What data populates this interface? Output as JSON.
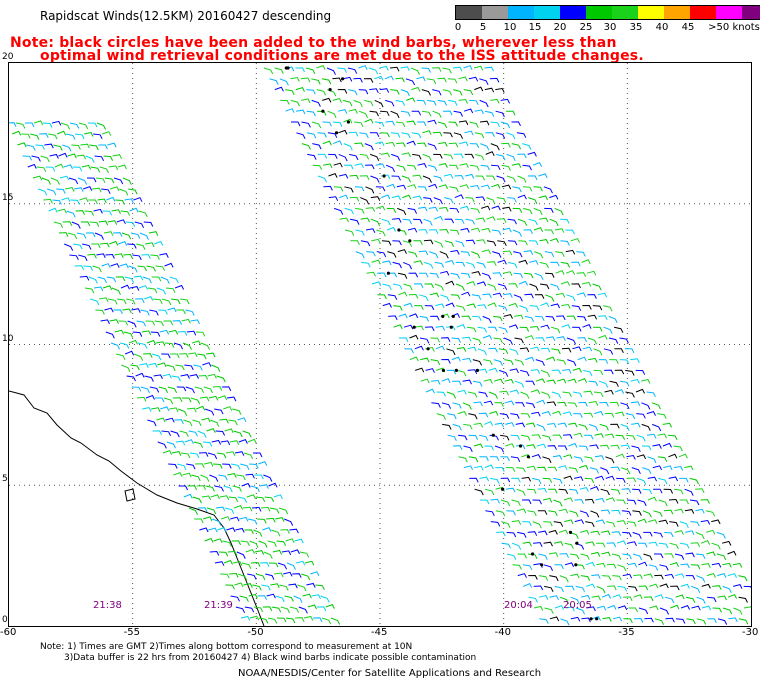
{
  "title": "Rapidscat Winds(12.5KM) 20160427 descending",
  "note_line1": "Note: black circles have been added to the wind barbs, wherever less than",
  "note_line2": "optimal wind retrieval conditions are met due to the ISS attitude changes.",
  "colorbar": {
    "labels": [
      "0",
      "5",
      "10",
      "15",
      "20",
      "25",
      "30",
      "35",
      "40",
      "45",
      ">50 knots"
    ],
    "colors": [
      "#4d4d4d",
      "#9a9a9a",
      "#00b4ff",
      "#00d2f0",
      "#0000ff",
      "#00c800",
      "#19d219",
      "#ffff00",
      "#ffa500",
      "#ff0000",
      "#ff00ff",
      "#800080",
      "#300060"
    ]
  },
  "map": {
    "lon_range": [
      -60,
      -30
    ],
    "lat_range": [
      0,
      20
    ],
    "x_ticks": [
      "-60",
      "-55",
      "-50",
      "-45",
      "-40",
      "-35",
      "-30"
    ],
    "y_ticks": [
      "20",
      "15",
      "10",
      "5",
      "0"
    ],
    "time_labels": [
      "21:38",
      "21:39",
      "20:04",
      "20:05"
    ]
  },
  "footnote_line1": "Note: 1) Times are GMT 2)Times along bottom correspond to measurement at 10N",
  "footnote_line2": "3)Data buffer is 22 hrs from 20160427 4) Black wind barbs indicate possible contamination",
  "credit": "NOAA/NESDIS/Center for Satellite Applications and Research"
}
